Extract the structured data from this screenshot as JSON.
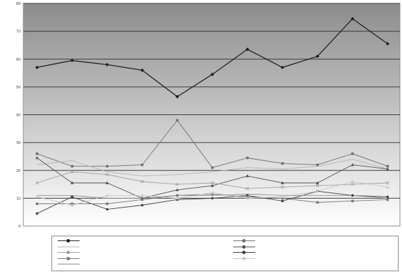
{
  "chart_data": {
    "type": "line",
    "title": "",
    "xlabel": "",
    "ylabel": "",
    "ylim": [
      0,
      80
    ],
    "yticks": [
      0,
      10,
      20,
      30,
      40,
      50,
      60,
      70,
      80
    ],
    "categories": [
      "",
      "",
      "",
      "",
      "",
      "",
      "",
      "",
      "",
      "",
      ""
    ],
    "grid": true,
    "legend_position": "bottom",
    "series": [
      {
        "color": "#1e1e1e",
        "marker": "diamond",
        "width": 1.3,
        "values": [
          57,
          59.5,
          58,
          56,
          46.5,
          54.5,
          63.5,
          57,
          61,
          74.5,
          65.5
        ]
      },
      {
        "color": "#6e6e6e",
        "marker": "square",
        "width": 0.9,
        "values": [
          26,
          21.5,
          21.5,
          22,
          38,
          21,
          24.5,
          22.5,
          22,
          26,
          21.5
        ]
      },
      {
        "color": "#b4b4b4",
        "marker": "none",
        "width": 0.9,
        "values": [
          22,
          23.5,
          19.5,
          18,
          18.5,
          19.5,
          21,
          20.5,
          21.5,
          24,
          20.5
        ]
      },
      {
        "color": "#505050",
        "marker": "triangle",
        "width": 0.9,
        "values": [
          24.5,
          15.5,
          15.5,
          10,
          13,
          14.5,
          18,
          15.5,
          15.5,
          22,
          20.5
        ]
      },
      {
        "color": "#a0a0a0",
        "marker": "x",
        "width": 0.9,
        "values": [
          15.5,
          19.5,
          18.5,
          16,
          15,
          15.5,
          13.5,
          14,
          14.5,
          15,
          15.5
        ]
      },
      {
        "color": "#3c3c3c",
        "marker": "circle",
        "width": 0.9,
        "values": [
          4.5,
          10.5,
          6,
          7.5,
          9.5,
          10,
          11,
          9,
          12.5,
          11,
          10.5
        ]
      },
      {
        "color": "#787878",
        "marker": "square",
        "width": 0.9,
        "values": [
          8,
          8,
          8,
          9.5,
          11,
          11.5,
          10.5,
          10,
          8.5,
          9,
          9.5
        ]
      },
      {
        "color": "#c8c8c8",
        "marker": "triangle",
        "width": 0.9,
        "values": [
          10.5,
          7.5,
          11,
          11,
          10,
          12,
          10,
          10.5,
          12.5,
          16,
          14
        ]
      },
      {
        "color": "#8c8c8c",
        "marker": "none",
        "width": 0.9,
        "values": [
          11,
          11,
          10,
          10,
          11,
          11,
          11.5,
          11,
          11,
          11,
          10
        ]
      }
    ]
  }
}
